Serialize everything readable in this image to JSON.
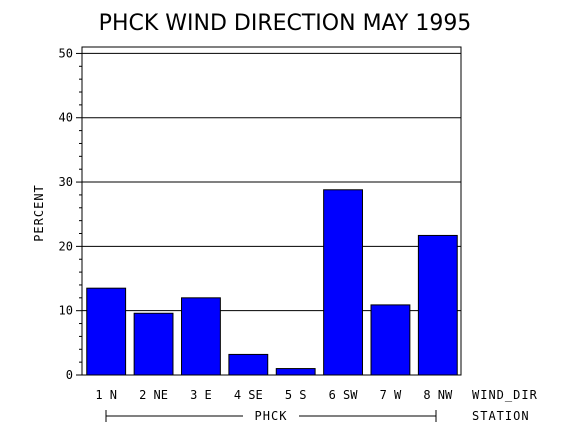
{
  "chart_data": {
    "type": "bar",
    "title": "PHCK WIND DIRECTION MAY 1995",
    "ylabel": "PERCENT",
    "xlabel": "WIND_DIR",
    "group_label": "STATION",
    "group_value": "PHCK",
    "ylim": [
      0,
      51
    ],
    "yticks": [
      0,
      10,
      20,
      30,
      40,
      50
    ],
    "grid": true,
    "categories": [
      "1 N",
      "2 NE",
      "3 E",
      "4 SE",
      "5 S",
      "6 SW",
      "7 W",
      "8 NW"
    ],
    "values": [
      13.5,
      9.6,
      12.0,
      3.2,
      1.0,
      28.8,
      10.9,
      21.7
    ],
    "bar_color": "#0000ff"
  }
}
